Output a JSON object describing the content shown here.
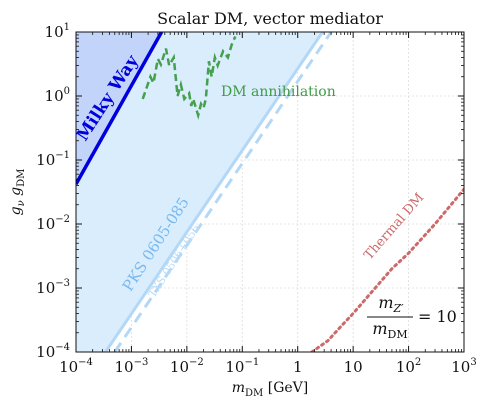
{
  "chart_data": {
    "type": "line",
    "title": "Scalar DM, vector mediator",
    "xlabel_main": "m",
    "xlabel_sub": "DM",
    "xlabel_unit": " [GeV]",
    "ylabel_main": "g",
    "ylabel_sub1": "ν",
    "ylabel_mid": " g",
    "ylabel_sub2": "DM",
    "x_scale": "log",
    "y_scale": "log",
    "xlim": [
      0.0001,
      1000
    ],
    "ylim": [
      0.0001,
      10
    ],
    "grid": true,
    "x_ticks": [
      {
        "v": 0.0001,
        "base": "10",
        "exp": "−4"
      },
      {
        "v": 0.001,
        "base": "10",
        "exp": "−3"
      },
      {
        "v": 0.01,
        "base": "10",
        "exp": "−2"
      },
      {
        "v": 0.1,
        "base": "10",
        "exp": "−1"
      },
      {
        "v": 1,
        "base": "1",
        "exp": ""
      },
      {
        "v": 10,
        "base": "10",
        "exp": ""
      },
      {
        "v": 100,
        "base": "10",
        "exp": "2"
      },
      {
        "v": 1000,
        "base": "10",
        "exp": "3"
      }
    ],
    "y_ticks": [
      {
        "v": 0.0001,
        "base": "10",
        "exp": "−4"
      },
      {
        "v": 0.001,
        "base": "10",
        "exp": "−3"
      },
      {
        "v": 0.01,
        "base": "10",
        "exp": "−2"
      },
      {
        "v": 0.1,
        "base": "10",
        "exp": "−1"
      },
      {
        "v": 1,
        "base": "10",
        "exp": "0"
      },
      {
        "v": 10,
        "base": "10",
        "exp": "1"
      }
    ],
    "series": [
      {
        "name": "Milky Way",
        "style": "solid",
        "color": "#0000dd",
        "fill": "#c2d4fa",
        "x": [
          0.0001,
          0.0035
        ],
        "y": [
          0.042,
          10
        ]
      },
      {
        "name": "PKS 0605-085",
        "style": "solid",
        "color": "#b3d8f7",
        "fill": "#daedfc",
        "x": [
          0.00034,
          2.8
        ],
        "y": [
          0.0001,
          10
        ]
      },
      {
        "name": "TXS 0506+056",
        "style": "dashed",
        "color": "#b3d8f7",
        "x": [
          0.0005,
          4.0
        ],
        "y": [
          0.0001,
          10
        ]
      },
      {
        "name": "DM annihilation",
        "style": "dashed",
        "color": "#44a04c",
        "x": [
          0.0016,
          0.0022,
          0.0025,
          0.003,
          0.0034,
          0.0042,
          0.0048,
          0.0058,
          0.0068,
          0.0078,
          0.009,
          0.011,
          0.012,
          0.013,
          0.016,
          0.018,
          0.02,
          0.022,
          0.025,
          0.028,
          0.032,
          0.036,
          0.045,
          0.055,
          0.065,
          0.075
        ],
        "y": [
          0.9,
          2.0,
          1.6,
          3.8,
          3.1,
          5.5,
          3.0,
          4.0,
          1.0,
          1.5,
          0.9,
          1.1,
          0.7,
          0.9,
          0.5,
          0.75,
          0.65,
          0.9,
          3.5,
          2.0,
          4.0,
          3.0,
          5.0,
          4.0,
          6.5,
          8.5
        ]
      },
      {
        "name": "Thermal DM",
        "style": "dotted",
        "color": "#cc6a6a",
        "x": [
          1.8,
          3.5,
          6,
          10,
          20,
          50,
          100,
          300,
          1000
        ],
        "y": [
          0.0001,
          0.00015,
          0.00025,
          0.0004,
          0.0008,
          0.002,
          0.0035,
          0.01,
          0.035
        ]
      }
    ],
    "annotations": {
      "milky_way": "Milky Way",
      "pks": "PKS 0605-085",
      "txs": "TXS 0506+056",
      "dm_annihilation": "DM annihilation",
      "thermal": "Thermal DM",
      "ratio_num": "m",
      "ratio_num_sub": "Z′",
      "ratio_den": "m",
      "ratio_den_sub": "DM",
      "ratio_eq": "= 10"
    }
  }
}
